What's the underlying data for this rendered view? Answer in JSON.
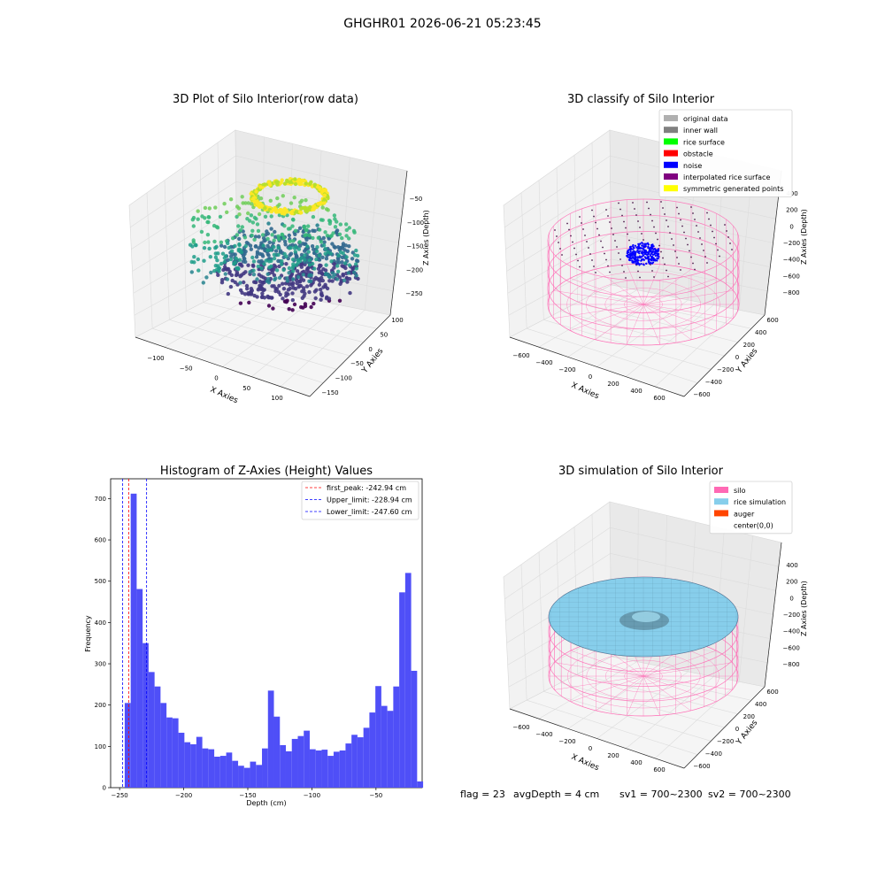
{
  "figure_title": "GHGHR01 2026-06-21 05:23:45",
  "footer": {
    "flag": "flag = 23",
    "avg_depth": "avgDepth = 4 cm",
    "sv1": "sv1 = 700~2300",
    "sv2": "sv2 = 700~2300"
  },
  "colors": {
    "histogram_bar": "#4f4ff7",
    "first_peak_line": "#ff0000",
    "limit_line": "#0000ff",
    "silo": "#ff69b4",
    "rice_simulation": "#87ceeb",
    "auger": "#ff4500",
    "noise": "#0000ff"
  },
  "chart_data": [
    {
      "id": "raw",
      "type": "scatter",
      "title": "3D Plot of Silo Interior(row data)",
      "xlabel": "X Axies",
      "ylabel": "Y Axies",
      "zlabel": "Z Axies (Depth)",
      "x_ticks": [
        "−100",
        "−50",
        "0",
        "50",
        "100"
      ],
      "y_ticks": [
        "100",
        "50",
        "0",
        "−50",
        "−100",
        "−150"
      ],
      "z_ticks": [
        "−50",
        "−100",
        "−150",
        "−200",
        "−250"
      ],
      "colormap": "viridis"
    },
    {
      "id": "classify",
      "type": "scatter",
      "title": "3D classify of Silo Interior",
      "xlabel": "X Axies",
      "ylabel": "Y Axies",
      "zlabel": "Z Axies (Depth)",
      "x_ticks": [
        "−600",
        "−400",
        "−200",
        "0",
        "200",
        "400",
        "600"
      ],
      "y_ticks": [
        "600",
        "400",
        "200",
        "0",
        "−200",
        "−400",
        "−600"
      ],
      "z_ticks": [
        "400",
        "200",
        "0",
        "−200",
        "−400",
        "−600",
        "−800"
      ],
      "legend": [
        {
          "label": "original data",
          "color": "#b0b0b0"
        },
        {
          "label": "inner wall",
          "color": "#808080"
        },
        {
          "label": "rice surface",
          "color": "#00ff00"
        },
        {
          "label": "obstacle",
          "color": "#ff0000"
        },
        {
          "label": "noise",
          "color": "#0000ff"
        },
        {
          "label": "interpolated rice surface",
          "color": "#800080"
        },
        {
          "label": "symmetric generated points",
          "color": "#ffff00"
        }
      ]
    },
    {
      "id": "histogram",
      "type": "bar",
      "title": "Histogram of Z-Axies (Height) Values",
      "xlabel": "Depth (cm)",
      "ylabel": "Frequency",
      "xlim": [
        -257,
        -14
      ],
      "ylim": [
        0,
        748
      ],
      "x_ticks": [
        -250,
        -200,
        -150,
        -100,
        -50
      ],
      "y_ticks": [
        0,
        100,
        200,
        300,
        400,
        500,
        600,
        700
      ],
      "bin_start": -246,
      "bin_width": 4.655,
      "values": [
        205,
        712,
        481,
        350,
        280,
        245,
        205,
        170,
        168,
        133,
        110,
        105,
        123,
        95,
        93,
        75,
        77,
        85,
        65,
        53,
        48,
        63,
        55,
        95,
        235,
        172,
        103,
        88,
        118,
        125,
        138,
        93,
        90,
        92,
        77,
        87,
        90,
        107,
        128,
        122,
        145,
        182,
        246,
        198,
        186,
        245,
        473,
        520,
        283,
        15
      ],
      "vlines": [
        {
          "label": "first_peak: -242.94 cm",
          "x": -242.94,
          "color": "#ff0000"
        },
        {
          "label": "Upper_limit: -228.94 cm",
          "x": -228.94,
          "color": "#0000ff"
        },
        {
          "label": "Lower_limit: -247.60 cm",
          "x": -247.6,
          "color": "#0000ff"
        }
      ],
      "legend_position": "upper right"
    },
    {
      "id": "simulation",
      "type": "surface",
      "title": "3D simulation of Silo Interior",
      "xlabel": "X Axies",
      "ylabel": "Y Axies",
      "zlabel": "Z Axies (Depth)",
      "x_ticks": [
        "−600",
        "−400",
        "−200",
        "0",
        "200",
        "400",
        "600"
      ],
      "y_ticks": [
        "600",
        "400",
        "200",
        "0",
        "−200",
        "−400",
        "−600"
      ],
      "z_ticks": [
        "400",
        "200",
        "0",
        "−200",
        "−400",
        "−600",
        "−800"
      ],
      "legend": [
        {
          "label": "silo",
          "color": "#ff69b4"
        },
        {
          "label": "rice simulation",
          "color": "#87ceeb"
        },
        {
          "label": "auger",
          "color": "#ff4500"
        },
        {
          "label": "center(0,0)",
          "color": ""
        }
      ]
    }
  ]
}
